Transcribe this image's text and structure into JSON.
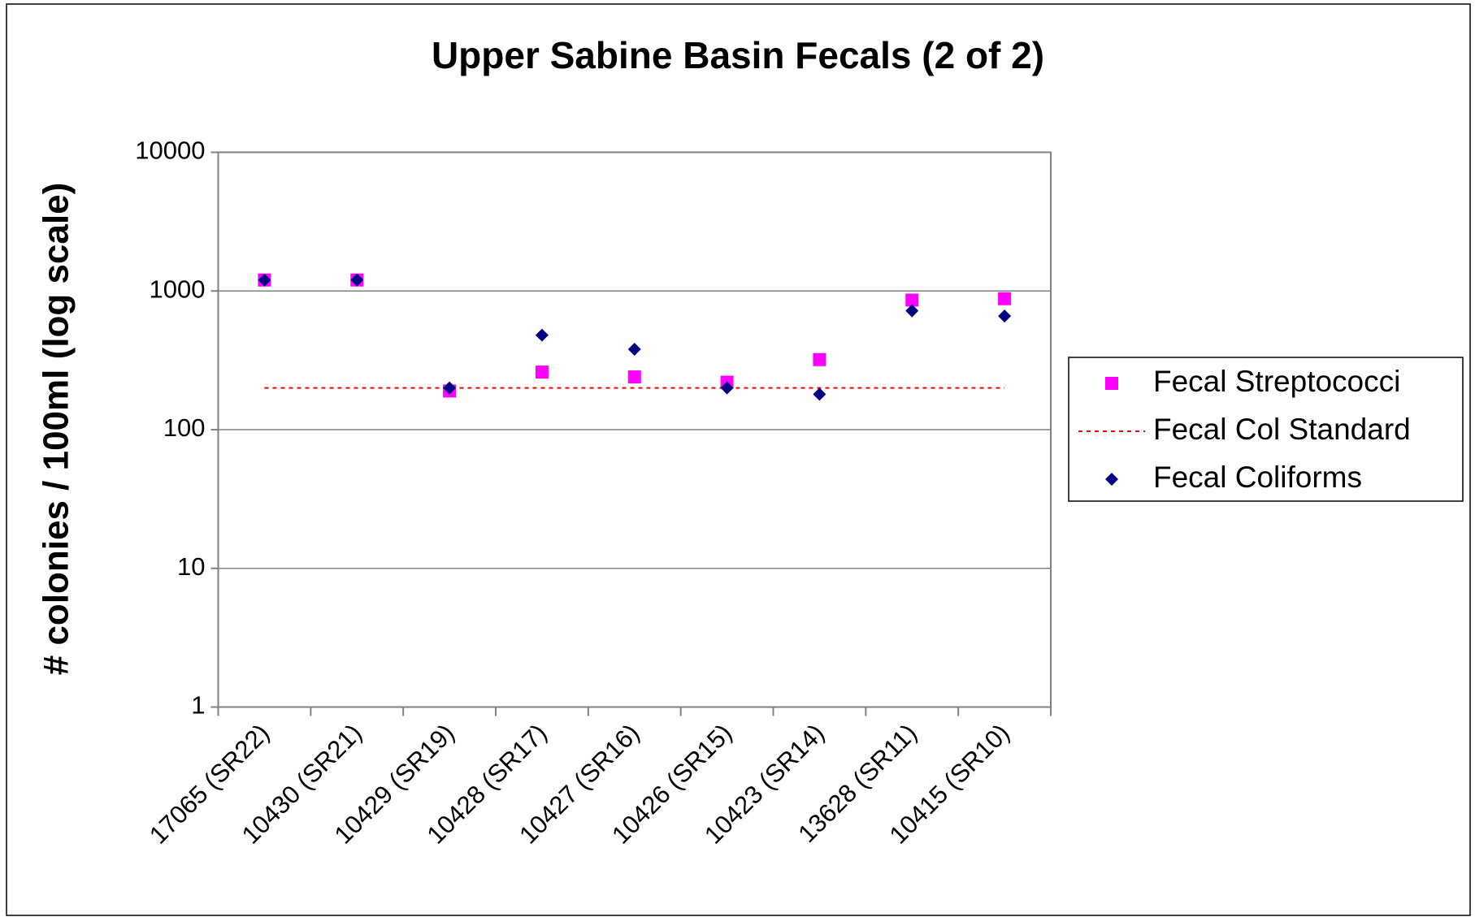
{
  "chart_data": {
    "type": "scatter",
    "title": "Upper Sabine Basin Fecals (2 of 2)",
    "y_label": "# colonies / 100ml (log scale)",
    "categories": [
      "17065 (SR22)",
      "10430 (SR21)",
      "10429 (SR19)",
      "10428 (SR17)",
      "10427 (SR16)",
      "10426 (SR15)",
      "10423 (SR14)",
      "13628 (SR11)",
      "10415 (SR10)"
    ],
    "series": [
      {
        "name": "Fecal Streptococci",
        "color": "#ff00ff",
        "marker": "square",
        "values": [
          1200,
          1200,
          190,
          260,
          240,
          220,
          320,
          860,
          880
        ]
      },
      {
        "name": "Fecal Col Standard",
        "color": "#ff0000",
        "marker": "dashed-line",
        "values": [
          200,
          200,
          200,
          200,
          200,
          200,
          200,
          200,
          200
        ]
      },
      {
        "name": "Fecal Coliforms",
        "color": "#000080",
        "marker": "diamond",
        "values": [
          1200,
          1200,
          200,
          480,
          380,
          200,
          180,
          720,
          660
        ]
      }
    ],
    "ylim": [
      1,
      10000
    ],
    "yticks": [
      1,
      10,
      100,
      1000,
      10000
    ],
    "log_scale": true,
    "grid": true,
    "legend": "right"
  }
}
